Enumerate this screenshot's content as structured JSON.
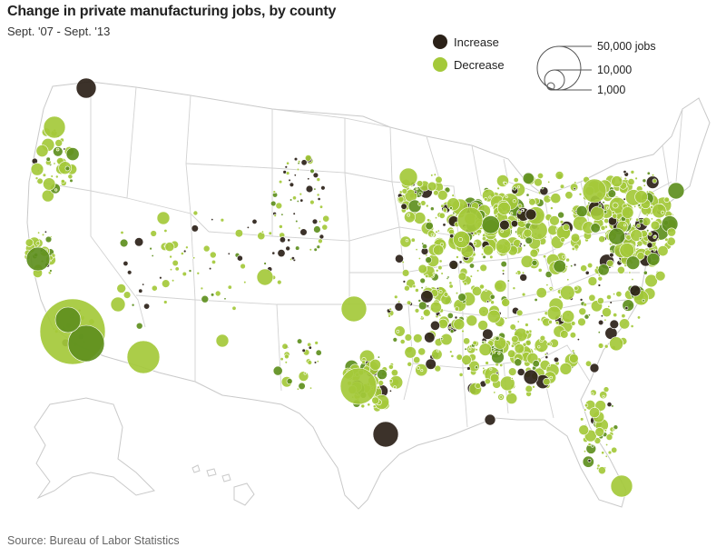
{
  "title": "Change in private manufacturing jobs, by county",
  "subtitle": "Sept. '07 - Sept. '13",
  "source": "Source: Bureau of Labor Statistics",
  "legend": {
    "increase_label": "Increase",
    "decrease_label": "Decrease",
    "increase_color": "#2b2118",
    "decrease_color": "#a4c93a",
    "decrease_dark_color": "#5e8f1e",
    "size_labels": [
      "50,000 jobs",
      "10,000",
      "1,000"
    ],
    "size_values": [
      50000,
      10000,
      1000
    ]
  },
  "colors": {
    "land": "#ffffff",
    "state_border": "#c9c9c9",
    "circle_stroke": "#ffffff"
  }
}
